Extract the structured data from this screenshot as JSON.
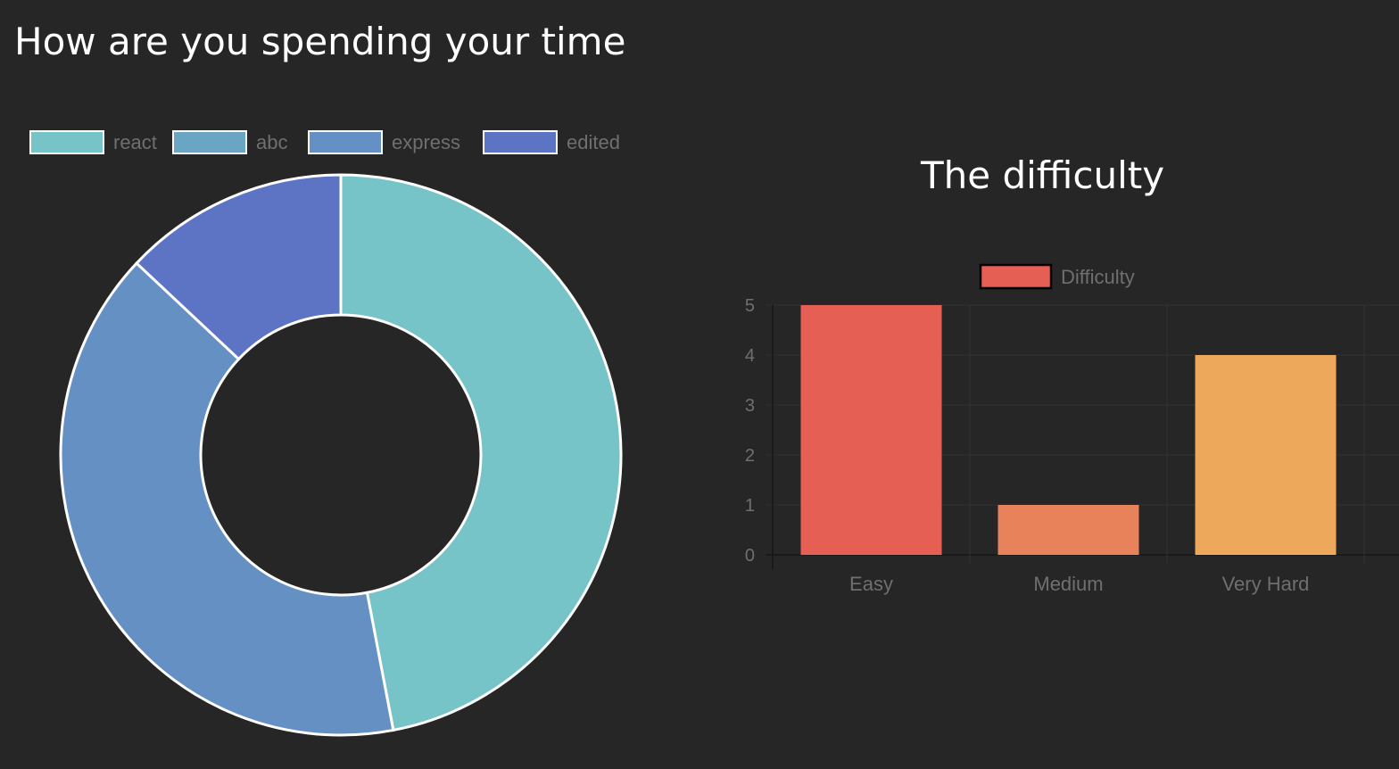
{
  "header": {
    "title": "How are you spending your time"
  },
  "difficulty_section": {
    "title": "The difficulty"
  },
  "chart_data": [
    {
      "type": "doughnut",
      "title": "How are you spending your time",
      "legend_position": "top",
      "categories": [
        "react",
        "abc",
        "express",
        "edited"
      ],
      "values": [
        47,
        0,
        40,
        13
      ],
      "colors": [
        "#76c4c8",
        "#6aa6c4",
        "#6590c4",
        "#5d73c4"
      ],
      "border_color": "#ffffff"
    },
    {
      "type": "bar",
      "title": "The difficulty",
      "legend_position": "top",
      "categories": [
        "Easy",
        "Medium",
        "Very Hard"
      ],
      "series": [
        {
          "name": "Difficulty",
          "values": [
            5,
            1,
            4
          ]
        }
      ],
      "bar_colors": [
        "#e55f55",
        "#e8825a",
        "#eda85c"
      ],
      "ylim": [
        0,
        5
      ],
      "yticks": [
        "0",
        "1",
        "2",
        "3",
        "4",
        "5"
      ],
      "grid": true
    }
  ]
}
